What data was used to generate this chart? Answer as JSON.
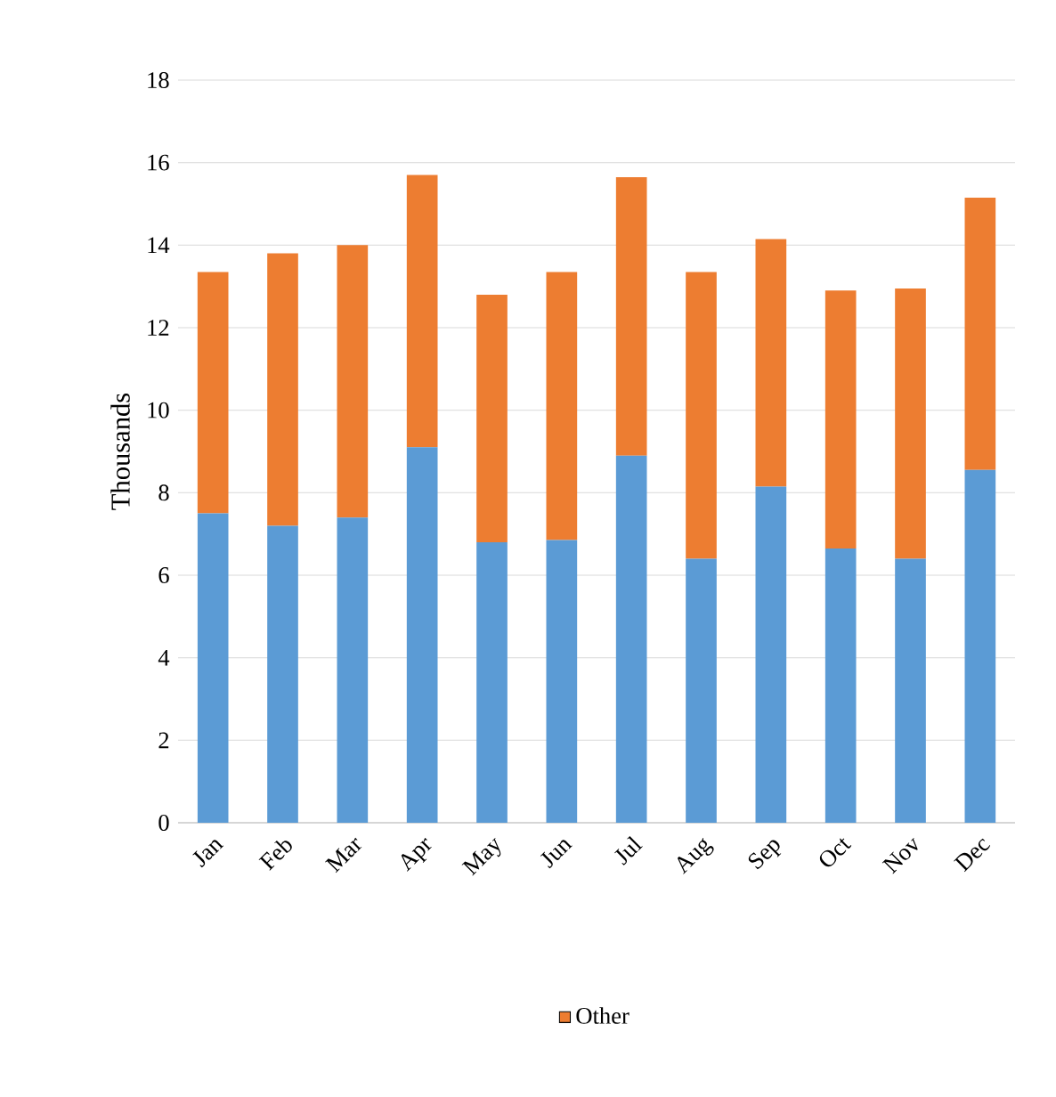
{
  "chart_data": {
    "type": "bar",
    "stacked": true,
    "ylabel": "Thousands",
    "categories": [
      "Jan",
      "Feb",
      "Mar",
      "Apr",
      "May",
      "Jun",
      "Jul",
      "Aug",
      "Sep",
      "Oct",
      "Nov",
      "Dec"
    ],
    "series": [
      {
        "color": "#5b9bd5",
        "values": [
          7.5,
          7.2,
          7.4,
          9.1,
          6.8,
          6.85,
          8.9,
          6.4,
          8.15,
          6.65,
          6.4,
          8.55
        ]
      },
      {
        "name": "Other",
        "color": "#ed7d31",
        "values": [
          5.85,
          6.6,
          6.6,
          6.6,
          6.0,
          6.5,
          6.75,
          6.95,
          6.0,
          6.25,
          6.55,
          6.6
        ]
      }
    ],
    "ylim": [
      0,
      18
    ],
    "yticks": [
      0,
      2,
      4,
      6,
      8,
      10,
      12,
      14,
      16,
      18
    ],
    "grid": "y",
    "legend": "bottom"
  }
}
